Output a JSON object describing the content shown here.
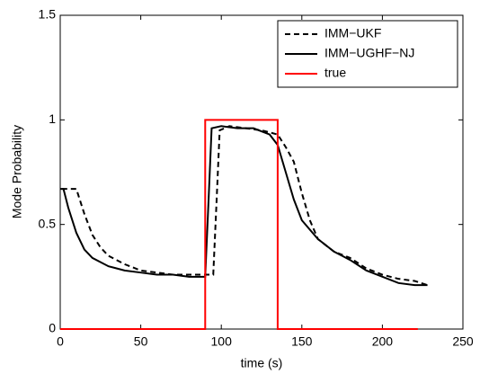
{
  "chart_data": {
    "type": "line",
    "x_label": "time (s)",
    "y_label": "Mode Probability",
    "xlim": [
      0,
      250
    ],
    "xticks": [
      0,
      50,
      100,
      150,
      200,
      250
    ],
    "ylim": [
      0,
      1.5
    ],
    "yticks": [
      0,
      0.5,
      1,
      1.5
    ],
    "legend": "upper right",
    "series": [
      {
        "name": "IMM−UKF",
        "color": "#000000",
        "dash": "dashed",
        "x": [
          1,
          10,
          15,
          20,
          25,
          30,
          40,
          50,
          60,
          70,
          80,
          90,
          95,
          97,
          99,
          105,
          115,
          125,
          135,
          140,
          145,
          150,
          155,
          160,
          170,
          180,
          190,
          200,
          210,
          220,
          228
        ],
        "values": [
          0.67,
          0.67,
          0.55,
          0.45,
          0.39,
          0.35,
          0.31,
          0.28,
          0.27,
          0.26,
          0.26,
          0.26,
          0.26,
          0.6,
          0.95,
          0.97,
          0.96,
          0.95,
          0.93,
          0.87,
          0.8,
          0.65,
          0.52,
          0.43,
          0.37,
          0.34,
          0.29,
          0.26,
          0.24,
          0.23,
          0.21
        ]
      },
      {
        "name": "IMM−UGHF−NJ",
        "color": "#000000",
        "dash": "solid",
        "x": [
          0,
          2,
          5,
          10,
          15,
          20,
          30,
          40,
          50,
          60,
          70,
          80,
          90,
          92,
          94,
          100,
          110,
          120,
          130,
          135,
          140,
          145,
          150,
          160,
          170,
          180,
          190,
          200,
          210,
          220,
          228
        ],
        "values": [
          0.67,
          0.67,
          0.58,
          0.46,
          0.38,
          0.34,
          0.3,
          0.28,
          0.27,
          0.26,
          0.26,
          0.25,
          0.25,
          0.6,
          0.96,
          0.97,
          0.96,
          0.96,
          0.93,
          0.88,
          0.75,
          0.62,
          0.52,
          0.43,
          0.37,
          0.33,
          0.28,
          0.25,
          0.22,
          0.21,
          0.21
        ]
      },
      {
        "name": "true",
        "color": "#ff0000",
        "dash": "solid",
        "x": [
          0,
          90,
          90,
          135,
          135,
          222
        ],
        "values": [
          0,
          0,
          1,
          1,
          0,
          0
        ]
      }
    ]
  }
}
